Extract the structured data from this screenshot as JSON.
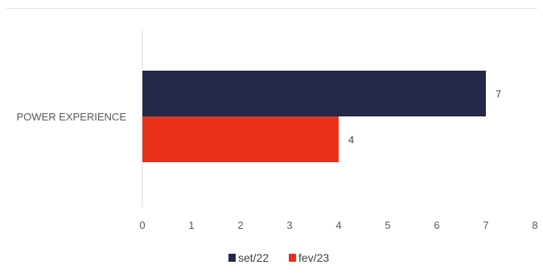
{
  "chart_data": {
    "type": "bar",
    "orientation": "horizontal",
    "categories": [
      "POWER EXPERIENCE"
    ],
    "series": [
      {
        "name": "set/22",
        "values": [
          7
        ],
        "color": "#232946"
      },
      {
        "name": "fev/23",
        "values": [
          4
        ],
        "color": "#e8301a"
      }
    ],
    "xlim": [
      0,
      8
    ],
    "x_ticks": [
      "0",
      "1",
      "2",
      "3",
      "4",
      "5",
      "6",
      "7",
      "8"
    ],
    "data_labels": [
      "7",
      "4"
    ],
    "legend_position": "bottom",
    "grid": false
  }
}
